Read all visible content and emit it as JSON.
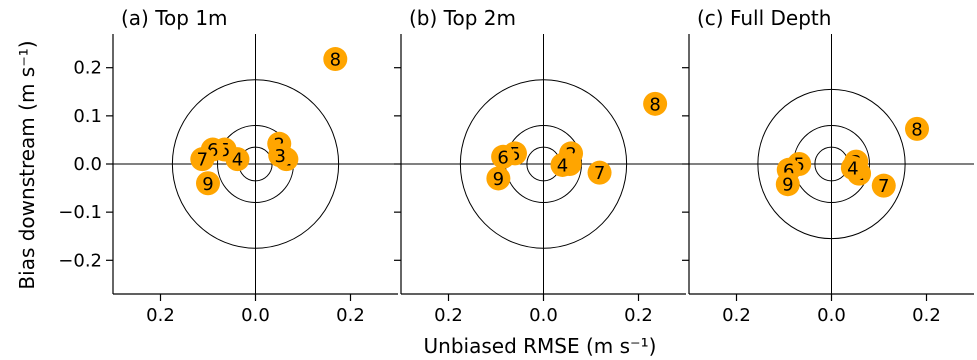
{
  "figure": {
    "ylabel": "Bias downstream (m s⁻¹)",
    "xlabel": "Unbiased RMSE (m s⁻¹)"
  },
  "colors": {
    "marker": "#FFA500",
    "axis": "#000000"
  },
  "chart_data": [
    {
      "type": "scatter",
      "title": "(a) Top 1m",
      "xlim": [
        -0.3,
        0.3
      ],
      "ylim": [
        -0.27,
        0.27
      ],
      "xticks": [
        -0.2,
        0.0,
        0.2
      ],
      "xtick_labels": [
        "0.2",
        "0.0",
        "0.2"
      ],
      "yticks": [
        -0.2,
        -0.1,
        0.0,
        0.1,
        0.2
      ],
      "ytick_labels": [
        "−0.2",
        "−0.1",
        "0.0",
        "0.1",
        "0.2"
      ],
      "circles": [
        0.035,
        0.08,
        0.175
      ],
      "points": [
        {
          "label": "1",
          "x": 0.065,
          "y": 0.01
        },
        {
          "label": "2",
          "x": 0.05,
          "y": 0.042
        },
        {
          "label": "3",
          "x": 0.052,
          "y": 0.018
        },
        {
          "label": "4",
          "x": -0.038,
          "y": 0.01
        },
        {
          "label": "5",
          "x": -0.065,
          "y": 0.03
        },
        {
          "label": "6",
          "x": -0.09,
          "y": 0.03
        },
        {
          "label": "7",
          "x": -0.112,
          "y": 0.01
        },
        {
          "label": "8",
          "x": 0.168,
          "y": 0.218
        },
        {
          "label": "9",
          "x": -0.1,
          "y": -0.04
        }
      ]
    },
    {
      "type": "scatter",
      "title": "(b) Top 2m",
      "xlim": [
        -0.3,
        0.3
      ],
      "ylim": [
        -0.27,
        0.27
      ],
      "xticks": [
        -0.2,
        0.0,
        0.2
      ],
      "xtick_labels": [
        "0.2",
        "0.0",
        "0.2"
      ],
      "circles": [
        0.035,
        0.08,
        0.175
      ],
      "points": [
        {
          "label": "1",
          "x": 0.055,
          "y": 0.0
        },
        {
          "label": "2",
          "x": 0.058,
          "y": 0.022
        },
        {
          "label": "3",
          "x": 0.048,
          "y": 0.002
        },
        {
          "label": "4",
          "x": 0.04,
          "y": -0.002
        },
        {
          "label": "5",
          "x": -0.06,
          "y": 0.022
        },
        {
          "label": "6",
          "x": -0.085,
          "y": 0.015
        },
        {
          "label": "7",
          "x": 0.118,
          "y": -0.018
        },
        {
          "label": "8",
          "x": 0.235,
          "y": 0.125
        },
        {
          "label": "9",
          "x": -0.095,
          "y": -0.03
        }
      ]
    },
    {
      "type": "scatter",
      "title": "(c) Full Depth",
      "xlim": [
        -0.3,
        0.3
      ],
      "ylim": [
        -0.27,
        0.27
      ],
      "xticks": [
        -0.2,
        0.0,
        0.2
      ],
      "xtick_labels": [
        "0.2",
        "0.0",
        "0.2"
      ],
      "circles": [
        0.035,
        0.08,
        0.155
      ],
      "points": [
        {
          "label": "1",
          "x": 0.058,
          "y": -0.02
        },
        {
          "label": "2",
          "x": 0.052,
          "y": 0.005
        },
        {
          "label": "3",
          "x": 0.05,
          "y": -0.01
        },
        {
          "label": "4",
          "x": 0.045,
          "y": -0.008
        },
        {
          "label": "5",
          "x": -0.068,
          "y": 0.0
        },
        {
          "label": "6",
          "x": -0.09,
          "y": -0.012
        },
        {
          "label": "7",
          "x": 0.11,
          "y": -0.045
        },
        {
          "label": "8",
          "x": 0.18,
          "y": 0.073
        },
        {
          "label": "9",
          "x": -0.092,
          "y": -0.042
        }
      ]
    }
  ]
}
